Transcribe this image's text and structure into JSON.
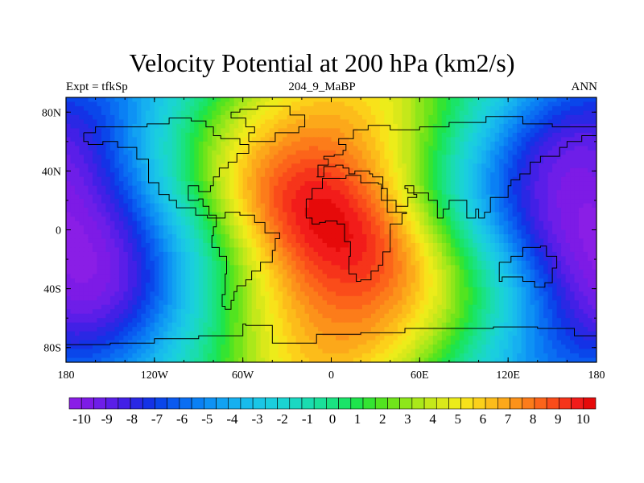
{
  "chart_data": {
    "type": "heatmap",
    "title": "Velocity Potential at 200 hPa (km2/s)",
    "subtitle_left": "Expt = tfkSp",
    "subtitle_center": "204_9_MaBP",
    "subtitle_right": "ANN",
    "x_axis": {
      "range": [
        -180,
        180
      ],
      "ticks": [
        {
          "value": -180,
          "label": "180"
        },
        {
          "value": -120,
          "label": "120W"
        },
        {
          "value": -60,
          "label": "60W"
        },
        {
          "value": 0,
          "label": "0"
        },
        {
          "value": 60,
          "label": "60E"
        },
        {
          "value": 120,
          "label": "120E"
        },
        {
          "value": 180,
          "label": "180"
        }
      ]
    },
    "y_axis": {
      "range": [
        -90,
        90
      ],
      "ticks": [
        {
          "value": 80,
          "label": "80N"
        },
        {
          "value": 40,
          "label": "40N"
        },
        {
          "value": 0,
          "label": "0"
        },
        {
          "value": -40,
          "label": "40S"
        },
        {
          "value": -80,
          "label": "80S"
        }
      ]
    },
    "field": {
      "max_center": {
        "lon": 0,
        "lat": 10,
        "value": 10.5
      },
      "min_centers": [
        {
          "lon": -180,
          "lat": 10,
          "value": -10.5
        },
        {
          "lon": 180,
          "lat": 10,
          "value": -10.5
        }
      ]
    },
    "colorbar": {
      "min": -10.5,
      "max": 10.5,
      "step": 0.5,
      "labels": [
        "-10",
        "-9",
        "-8",
        "-7",
        "-6",
        "-5",
        "-4",
        "-3",
        "-2",
        "-1",
        "0",
        "1",
        "2",
        "3",
        "4",
        "5",
        "6",
        "7",
        "8",
        "9",
        "10"
      ],
      "colors": [
        "#8a1ee6",
        "#7d1be6",
        "#6e1ee8",
        "#5a1ee8",
        "#4220e6",
        "#2a28e4",
        "#1432e6",
        "#0a46ea",
        "#0a5af0",
        "#0a6ef2",
        "#0a80f4",
        "#0e92f4",
        "#12a2f2",
        "#16b0f0",
        "#18bcec",
        "#1ac6e6",
        "#1acede",
        "#1ad4d2",
        "#1ad8c2",
        "#1adcb0",
        "#1ae09a",
        "#1ae282",
        "#1ae468",
        "#1ee44c",
        "#34e432",
        "#52e420",
        "#70e41a",
        "#8ee61a",
        "#aae81a",
        "#c4e81a",
        "#dae81a",
        "#ecec1a",
        "#f8e21a",
        "#fcd01a",
        "#fcbc1a",
        "#fca81a",
        "#fc921a",
        "#fc7c1a",
        "#fc641a",
        "#fa4c1a",
        "#f6341a",
        "#f21c1a",
        "#e60a0a"
      ]
    }
  }
}
